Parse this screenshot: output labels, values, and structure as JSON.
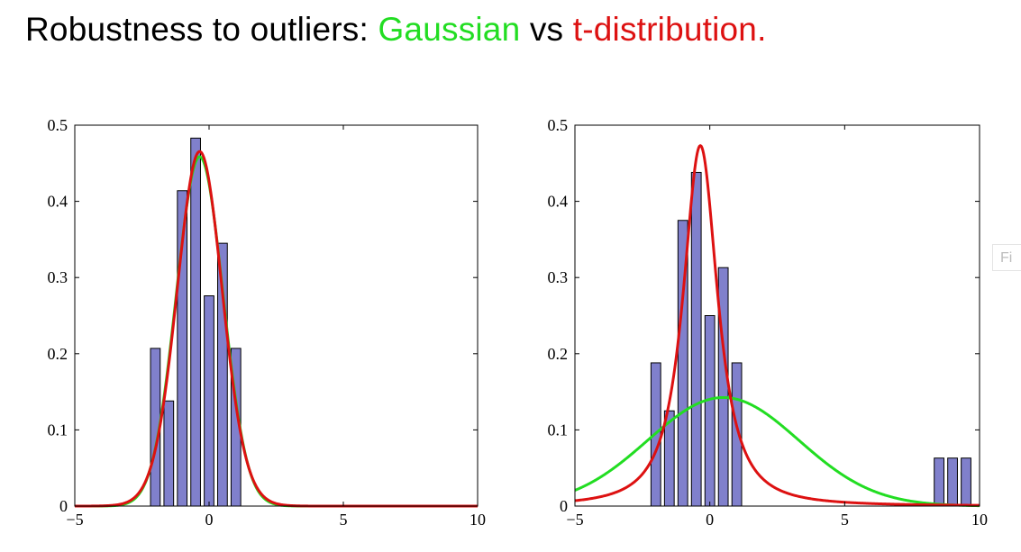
{
  "title": {
    "part1": "Robustness to outliers: ",
    "part2": "Gaussian",
    "part3": " vs ",
    "part4": "t-distribution."
  },
  "colors": {
    "gaussian": "#22dd22",
    "t_distribution": "#dd1111",
    "bar_fill": "#8080cc",
    "bar_stroke": "#000000"
  },
  "side_tab": {
    "label": "Fi"
  },
  "chart_data": [
    {
      "type": "bar",
      "xlim": [
        -5,
        10
      ],
      "ylim": [
        0,
        0.5
      ],
      "xticks": [
        -5,
        0,
        5,
        10
      ],
      "yticks": [
        0,
        0.1,
        0.2,
        0.3,
        0.4,
        0.5
      ],
      "xtick_labels": [
        "−5",
        "0",
        "5",
        "10"
      ],
      "ytick_labels": [
        "0",
        "0.1",
        "0.2",
        "0.3",
        "0.4",
        "0.5"
      ],
      "bar_width": 0.36,
      "bars": [
        {
          "x": -2.0,
          "value": 0.207
        },
        {
          "x": -1.5,
          "value": 0.138
        },
        {
          "x": -1.0,
          "value": 0.414
        },
        {
          "x": -0.5,
          "value": 0.483
        },
        {
          "x": 0.0,
          "value": 0.276
        },
        {
          "x": 0.5,
          "value": 0.345
        },
        {
          "x": 1.0,
          "value": 0.207
        }
      ],
      "series": [
        {
          "kind": "gaussian",
          "color_key": "gaussian",
          "mean": -0.35,
          "std": 0.87
        },
        {
          "kind": "student_t",
          "color_key": "t_distribution",
          "loc": -0.35,
          "scale": 0.85,
          "dof": 30
        }
      ]
    },
    {
      "type": "bar",
      "xlim": [
        -5,
        10
      ],
      "ylim": [
        0,
        0.5
      ],
      "xticks": [
        -5,
        0,
        5,
        10
      ],
      "yticks": [
        0,
        0.1,
        0.2,
        0.3,
        0.4,
        0.5
      ],
      "xtick_labels": [
        "−5",
        "0",
        "5",
        "10"
      ],
      "ytick_labels": [
        "0",
        "0.1",
        "0.2",
        "0.3",
        "0.4",
        "0.5"
      ],
      "bar_width": 0.36,
      "bars": [
        {
          "x": -2.0,
          "value": 0.188
        },
        {
          "x": -1.5,
          "value": 0.125
        },
        {
          "x": -1.0,
          "value": 0.375
        },
        {
          "x": -0.5,
          "value": 0.438
        },
        {
          "x": 0.0,
          "value": 0.25
        },
        {
          "x": 0.5,
          "value": 0.313
        },
        {
          "x": 1.0,
          "value": 0.188
        },
        {
          "x": 8.5,
          "value": 0.063
        },
        {
          "x": 9.0,
          "value": 0.063
        },
        {
          "x": 9.5,
          "value": 0.063
        }
      ],
      "series": [
        {
          "kind": "gaussian",
          "color_key": "gaussian",
          "mean": 0.5,
          "std": 2.8
        },
        {
          "kind": "student_t",
          "color_key": "t_distribution",
          "loc": -0.35,
          "scale": 0.72,
          "dof": 1.5
        }
      ]
    }
  ]
}
